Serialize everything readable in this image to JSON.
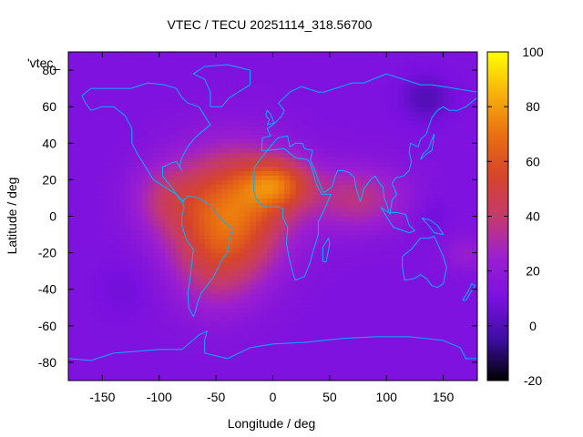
{
  "chart_data": {
    "type": "heatmap",
    "title": "VTEC / TECU 20251114_318.56700",
    "xlabel": "Longitude / deg",
    "ylabel": "Latitude / deg",
    "series_label": "'vtec_",
    "xlim": [
      -180,
      180
    ],
    "ylim": [
      -90,
      90
    ],
    "xticks": [
      -150,
      -100,
      -50,
      0,
      50,
      100,
      150
    ],
    "yticks": [
      -80,
      -60,
      -40,
      -20,
      0,
      20,
      40,
      60,
      80
    ],
    "colorbar": {
      "range": [
        -20,
        100
      ],
      "ticks": [
        -20,
        0,
        20,
        40,
        60,
        80,
        100
      ],
      "colors": [
        "#000000",
        "#3c0fa0",
        "#7a10e0",
        "#9c1fd0",
        "#c53a6c",
        "#d6442a",
        "#ea7010",
        "#f7b30c",
        "#ffff00"
      ]
    },
    "grid": false,
    "background_vtec": 12,
    "anomalies": [
      {
        "lon": -35,
        "lat": 5,
        "dlon": 50,
        "dlat": 32,
        "amp": 52
      },
      {
        "lon": -50,
        "lat": -25,
        "dlon": 40,
        "dlat": 28,
        "amp": 22
      },
      {
        "lon": 5,
        "lat": 18,
        "dlon": 30,
        "dlat": 14,
        "amp": 38
      },
      {
        "lon": 75,
        "lat": 10,
        "dlon": 42,
        "dlat": 18,
        "amp": 24
      },
      {
        "lon": -95,
        "lat": 10,
        "dlon": 30,
        "dlat": 20,
        "amp": 18
      },
      {
        "lon": 170,
        "lat": -20,
        "dlon": 20,
        "dlat": 10,
        "amp": 10
      },
      {
        "lon": 135,
        "lat": 65,
        "dlon": 22,
        "dlat": 12,
        "amp": -12
      },
      {
        "lon": 140,
        "lat": 0,
        "dlon": 15,
        "dlat": 10,
        "amp": -5
      },
      {
        "lon": -130,
        "lat": -40,
        "dlon": 25,
        "dlat": 15,
        "amp": -4
      }
    ],
    "coastlines": [
      {
        "name": "north-america",
        "points": [
          [
            -168,
            66
          ],
          [
            -160,
            70
          ],
          [
            -140,
            70
          ],
          [
            -125,
            70
          ],
          [
            -110,
            73
          ],
          [
            -95,
            72
          ],
          [
            -85,
            70
          ],
          [
            -80,
            65
          ],
          [
            -75,
            62
          ],
          [
            -65,
            60
          ],
          [
            -60,
            55
          ],
          [
            -55,
            50
          ],
          [
            -65,
            45
          ],
          [
            -70,
            42
          ],
          [
            -75,
            38
          ],
          [
            -80,
            32
          ],
          [
            -82,
            27
          ],
          [
            -80,
            25
          ],
          [
            -85,
            30
          ],
          [
            -90,
            29
          ],
          [
            -97,
            27
          ],
          [
            -97,
            22
          ],
          [
            -92,
            18
          ],
          [
            -88,
            15
          ],
          [
            -83,
            10
          ],
          [
            -80,
            8
          ],
          [
            -78,
            8
          ],
          [
            -85,
            12
          ],
          [
            -95,
            16
          ],
          [
            -105,
            20
          ],
          [
            -110,
            25
          ],
          [
            -115,
            30
          ],
          [
            -120,
            35
          ],
          [
            -124,
            40
          ],
          [
            -124,
            48
          ],
          [
            -130,
            55
          ],
          [
            -140,
            60
          ],
          [
            -150,
            60
          ],
          [
            -160,
            58
          ],
          [
            -165,
            62
          ],
          [
            -168,
            66
          ]
        ]
      },
      {
        "name": "greenland",
        "points": [
          [
            -55,
            60
          ],
          [
            -45,
            60
          ],
          [
            -38,
            65
          ],
          [
            -20,
            72
          ],
          [
            -20,
            80
          ],
          [
            -40,
            83
          ],
          [
            -60,
            82
          ],
          [
            -70,
            78
          ],
          [
            -60,
            75
          ],
          [
            -55,
            68
          ],
          [
            -55,
            60
          ]
        ]
      },
      {
        "name": "south-america",
        "points": [
          [
            -80,
            8
          ],
          [
            -75,
            11
          ],
          [
            -65,
            10
          ],
          [
            -55,
            6
          ],
          [
            -50,
            2
          ],
          [
            -45,
            -2
          ],
          [
            -35,
            -7
          ],
          [
            -38,
            -13
          ],
          [
            -40,
            -20
          ],
          [
            -45,
            -24
          ],
          [
            -48,
            -28
          ],
          [
            -53,
            -34
          ],
          [
            -58,
            -38
          ],
          [
            -63,
            -42
          ],
          [
            -66,
            -47
          ],
          [
            -68,
            -52
          ],
          [
            -70,
            -55
          ],
          [
            -74,
            -50
          ],
          [
            -75,
            -42
          ],
          [
            -73,
            -35
          ],
          [
            -71,
            -25
          ],
          [
            -70,
            -18
          ],
          [
            -76,
            -13
          ],
          [
            -80,
            -5
          ],
          [
            -80,
            0
          ],
          [
            -78,
            5
          ],
          [
            -80,
            8
          ]
        ]
      },
      {
        "name": "africa",
        "points": [
          [
            -17,
            21
          ],
          [
            -16,
            27
          ],
          [
            -10,
            32
          ],
          [
            -5,
            36
          ],
          [
            10,
            37
          ],
          [
            20,
            32
          ],
          [
            30,
            31
          ],
          [
            32,
            30
          ],
          [
            35,
            25
          ],
          [
            38,
            18
          ],
          [
            43,
            12
          ],
          [
            51,
            12
          ],
          [
            45,
            3
          ],
          [
            40,
            -3
          ],
          [
            40,
            -10
          ],
          [
            35,
            -20
          ],
          [
            33,
            -25
          ],
          [
            28,
            -33
          ],
          [
            20,
            -35
          ],
          [
            18,
            -32
          ],
          [
            14,
            -22
          ],
          [
            12,
            -15
          ],
          [
            13,
            -6
          ],
          [
            9,
            -1
          ],
          [
            9,
            4
          ],
          [
            5,
            5
          ],
          [
            -5,
            5
          ],
          [
            -10,
            6
          ],
          [
            -15,
            10
          ],
          [
            -17,
            15
          ],
          [
            -17,
            21
          ]
        ]
      },
      {
        "name": "eurasia",
        "points": [
          [
            -10,
            36
          ],
          [
            -9,
            43
          ],
          [
            -2,
            44
          ],
          [
            -5,
            48
          ],
          [
            0,
            50
          ],
          [
            5,
            53
          ],
          [
            8,
            55
          ],
          [
            10,
            58
          ],
          [
            5,
            62
          ],
          [
            15,
            68
          ],
          [
            25,
            71
          ],
          [
            40,
            68
          ],
          [
            45,
            68
          ],
          [
            55,
            70
          ],
          [
            70,
            73
          ],
          [
            80,
            73
          ],
          [
            100,
            78
          ],
          [
            110,
            76
          ],
          [
            130,
            72
          ],
          [
            140,
            72
          ],
          [
            160,
            70
          ],
          [
            170,
            69
          ],
          [
            180,
            68
          ],
          [
            180,
            65
          ],
          [
            170,
            60
          ],
          [
            163,
            58
          ],
          [
            155,
            58
          ],
          [
            150,
            60
          ],
          [
            145,
            58
          ],
          [
            140,
            54
          ],
          [
            135,
            45
          ],
          [
            130,
            42
          ],
          [
            128,
            38
          ],
          [
            121,
            40
          ],
          [
            120,
            35
          ],
          [
            122,
            30
          ],
          [
            120,
            25
          ],
          [
            115,
            22
          ],
          [
            108,
            21
          ],
          [
            105,
            18
          ],
          [
            109,
            12
          ],
          [
            105,
            9
          ],
          [
            103,
            1
          ],
          [
            100,
            7
          ],
          [
            98,
            10
          ],
          [
            97,
            16
          ],
          [
            94,
            18
          ],
          [
            90,
            22
          ],
          [
            86,
            20
          ],
          [
            80,
            15
          ],
          [
            77,
            8
          ],
          [
            73,
            16
          ],
          [
            72,
            21
          ],
          [
            67,
            24
          ],
          [
            62,
            25
          ],
          [
            57,
            25
          ],
          [
            55,
            22
          ],
          [
            52,
            16
          ],
          [
            45,
            13
          ],
          [
            43,
            15
          ],
          [
            40,
            20
          ],
          [
            35,
            28
          ],
          [
            33,
            31
          ],
          [
            35,
            36
          ],
          [
            28,
            37
          ],
          [
            26,
            40
          ],
          [
            20,
            40
          ],
          [
            15,
            38
          ],
          [
            13,
            44
          ],
          [
            5,
            43
          ],
          [
            3,
            42
          ],
          [
            -5,
            36
          ],
          [
            -10,
            36
          ]
        ]
      },
      {
        "name": "australia",
        "points": [
          [
            114,
            -22
          ],
          [
            122,
            -18
          ],
          [
            130,
            -12
          ],
          [
            137,
            -12
          ],
          [
            142,
            -11
          ],
          [
            145,
            -15
          ],
          [
            150,
            -22
          ],
          [
            153,
            -28
          ],
          [
            150,
            -37
          ],
          [
            145,
            -39
          ],
          [
            140,
            -38
          ],
          [
            135,
            -34
          ],
          [
            130,
            -32
          ],
          [
            125,
            -34
          ],
          [
            116,
            -35
          ],
          [
            114,
            -28
          ],
          [
            114,
            -22
          ]
        ]
      },
      {
        "name": "antarctica",
        "points": [
          [
            -180,
            -78
          ],
          [
            -160,
            -79
          ],
          [
            -140,
            -75
          ],
          [
            -120,
            -74
          ],
          [
            -100,
            -73
          ],
          [
            -80,
            -73
          ],
          [
            -65,
            -65
          ],
          [
            -58,
            -63
          ],
          [
            -60,
            -68
          ],
          [
            -60,
            -75
          ],
          [
            -40,
            -78
          ],
          [
            -20,
            -72
          ],
          [
            0,
            -70
          ],
          [
            30,
            -69
          ],
          [
            60,
            -67
          ],
          [
            90,
            -66
          ],
          [
            120,
            -66
          ],
          [
            150,
            -68
          ],
          [
            165,
            -72
          ],
          [
            170,
            -78
          ],
          [
            180,
            -78
          ]
        ]
      },
      {
        "name": "british-isles",
        "points": [
          [
            -5,
            50
          ],
          [
            1,
            51
          ],
          [
            0,
            53
          ],
          [
            -2,
            56
          ],
          [
            -5,
            58
          ],
          [
            -6,
            56
          ],
          [
            -5,
            54
          ],
          [
            -3,
            53
          ],
          [
            -5,
            50
          ]
        ]
      },
      {
        "name": "japan",
        "points": [
          [
            130,
            31
          ],
          [
            135,
            34
          ],
          [
            140,
            36
          ],
          [
            141,
            40
          ],
          [
            142,
            45
          ],
          [
            140,
            42
          ],
          [
            137,
            37
          ],
          [
            132,
            34
          ],
          [
            130,
            31
          ]
        ]
      },
      {
        "name": "madagascar",
        "points": [
          [
            44,
            -25
          ],
          [
            47,
            -25
          ],
          [
            50,
            -15
          ],
          [
            49,
            -12
          ],
          [
            44,
            -17
          ],
          [
            44,
            -25
          ]
        ]
      },
      {
        "name": "new-zealand",
        "points": [
          [
            167,
            -46
          ],
          [
            172,
            -41
          ],
          [
            175,
            -37
          ],
          [
            178,
            -38
          ],
          [
            174,
            -42
          ],
          [
            170,
            -46
          ],
          [
            167,
            -46
          ]
        ]
      },
      {
        "name": "indonesia",
        "points": [
          [
            95,
            5
          ],
          [
            106,
            -6
          ],
          [
            115,
            -8
          ],
          [
            120,
            -9
          ],
          [
            125,
            -8
          ],
          [
            120,
            -5
          ],
          [
            117,
            1
          ],
          [
            110,
            2
          ],
          [
            102,
            2
          ],
          [
            95,
            5
          ]
        ]
      },
      {
        "name": "new-guinea",
        "points": [
          [
            131,
            -1
          ],
          [
            138,
            -2
          ],
          [
            145,
            -5
          ],
          [
            150,
            -10
          ],
          [
            142,
            -9
          ],
          [
            137,
            -5
          ],
          [
            131,
            -1
          ]
        ]
      }
    ]
  }
}
